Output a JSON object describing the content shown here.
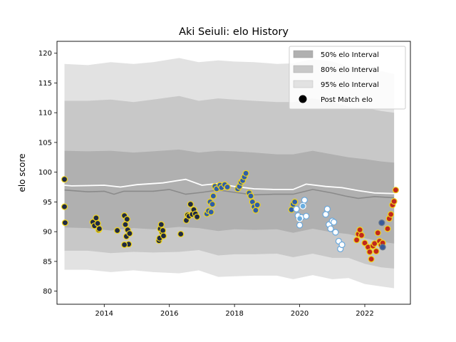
{
  "chart_data": {
    "type": "scatter",
    "title": "Aki Seiuli: elo History",
    "xlabel": "",
    "ylabel": "elo score",
    "xlim": [
      2012.55,
      2023.4
    ],
    "ylim": [
      77.8,
      122.0
    ],
    "xticks": [
      2014,
      2016,
      2018,
      2020,
      2022
    ],
    "xtick_labels": [
      "2014",
      "2016",
      "2018",
      "2020",
      "2022"
    ],
    "yticks": [
      80,
      85,
      90,
      95,
      100,
      105,
      110,
      115,
      120
    ],
    "ytick_labels": [
      "80",
      "85",
      "90",
      "95",
      "100",
      "105",
      "110",
      "115",
      "120"
    ],
    "legend_position": "top-right",
    "legend": [
      {
        "label": "50% elo Interval",
        "kind": "band",
        "color": "#b0b0b0"
      },
      {
        "label": "80% elo Interval",
        "kind": "band",
        "color": "#c8c8c8"
      },
      {
        "label": "95% elo Interval",
        "kind": "band",
        "color": "#e2e2e2"
      },
      {
        "label": "Post Match elo",
        "kind": "marker",
        "color": "#000000"
      }
    ],
    "bands": [
      {
        "name": "95% elo Interval",
        "color": "#e2e2e2",
        "x": [
          2012.78,
          2013.5,
          2014.2,
          2014.9,
          2015.5,
          2016.3,
          2016.9,
          2017.5,
          2018.0,
          2018.6,
          2019.3,
          2019.8,
          2020.4,
          2021.0,
          2021.5,
          2022.0,
          2022.5,
          2022.9
        ],
        "upper": [
          118.2,
          118.0,
          118.5,
          118.2,
          118.5,
          119.2,
          118.5,
          118.8,
          118.6,
          118.5,
          118.2,
          118.3,
          119.0,
          118.6,
          117.8,
          117.6,
          117.0,
          116.5
        ],
        "lower": [
          83.6,
          83.6,
          83.2,
          83.5,
          83.2,
          83.0,
          83.5,
          82.4,
          82.5,
          82.6,
          82.6,
          82.0,
          82.7,
          82.0,
          82.2,
          81.2,
          80.8,
          80.5
        ]
      },
      {
        "name": "80% elo Interval",
        "color": "#c8c8c8",
        "x": [
          2012.78,
          2013.5,
          2014.2,
          2014.9,
          2015.5,
          2016.3,
          2016.9,
          2017.5,
          2018.0,
          2018.6,
          2019.3,
          2019.8,
          2020.4,
          2021.0,
          2021.5,
          2022.0,
          2022.5,
          2022.9
        ],
        "upper": [
          112.0,
          112.0,
          112.2,
          111.8,
          112.2,
          112.8,
          112.0,
          112.4,
          112.2,
          112.0,
          111.8,
          111.8,
          112.4,
          111.8,
          111.0,
          110.8,
          110.3,
          110.0
        ],
        "lower": [
          86.8,
          86.8,
          86.4,
          86.6,
          86.5,
          86.6,
          86.9,
          86.0,
          86.2,
          86.2,
          86.3,
          85.7,
          86.3,
          85.6,
          85.6,
          84.6,
          84.0,
          83.8
        ]
      },
      {
        "name": "50% elo Interval",
        "color": "#b0b0b0",
        "x": [
          2012.78,
          2013.5,
          2014.2,
          2014.9,
          2015.5,
          2016.3,
          2016.9,
          2017.5,
          2018.0,
          2018.6,
          2019.3,
          2019.8,
          2020.4,
          2021.0,
          2021.5,
          2022.0,
          2022.5,
          2022.9
        ],
        "upper": [
          103.6,
          103.5,
          103.6,
          103.3,
          103.5,
          103.8,
          103.3,
          103.6,
          103.5,
          103.3,
          103.0,
          103.0,
          103.6,
          103.0,
          102.5,
          102.2,
          101.8,
          101.6
        ],
        "lower": [
          90.7,
          90.6,
          90.2,
          90.6,
          90.4,
          90.8,
          90.6,
          90.1,
          90.4,
          90.3,
          90.4,
          89.8,
          90.5,
          89.9,
          89.6,
          88.9,
          88.3,
          88.0
        ]
      }
    ],
    "lines": [
      {
        "name": "mean",
        "color": "#ffffff",
        "x": [
          2012.78,
          2013.0,
          2014.0,
          2014.5,
          2015.0,
          2015.8,
          2016.5,
          2017.0,
          2017.5,
          2018.0,
          2018.6,
          2019.2,
          2019.8,
          2020.2,
          2020.8,
          2021.3,
          2021.8,
          2022.3,
          2022.9
        ],
        "y": [
          97.8,
          97.7,
          97.8,
          97.5,
          97.9,
          98.2,
          98.8,
          97.8,
          98.1,
          97.6,
          97.2,
          97.1,
          97.1,
          98.0,
          97.6,
          97.4,
          96.9,
          96.5,
          96.4
        ]
      },
      {
        "name": "median",
        "color": "#8a8a8a",
        "x": [
          2012.78,
          2013.5,
          2014.0,
          2014.3,
          2014.6,
          2015.5,
          2016.0,
          2016.5,
          2017.0,
          2017.5,
          2018.0,
          2018.6,
          2019.2,
          2019.8,
          2020.4,
          2021.0,
          2021.4,
          2021.8,
          2022.3,
          2022.9
        ],
        "y": [
          97.0,
          96.7,
          96.8,
          96.3,
          96.8,
          96.8,
          97.1,
          96.3,
          96.6,
          97.0,
          96.6,
          96.2,
          96.3,
          96.3,
          97.1,
          96.5,
          96.0,
          95.6,
          95.9,
          95.7
        ]
      }
    ],
    "series": [
      {
        "name": "",
        "color": "#1f2a44",
        "edge": "#f2d51a",
        "x": [
          2012.78,
          2012.78,
          2012.8,
          2013.65,
          2013.7,
          2013.75,
          2013.8,
          2013.83,
          2013.85,
          2014.4,
          2014.62,
          2014.65,
          2014.68,
          2014.7,
          2014.72,
          2014.75,
          2014.78,
          2014.62,
          2015.68,
          2015.7,
          2015.72,
          2015.75,
          2015.78,
          2015.8,
          2015.82,
          2016.35,
          2016.52,
          2016.56,
          2016.6,
          2016.65,
          2016.7,
          2016.75,
          2016.8,
          2016.85
        ],
        "y": [
          98.8,
          94.2,
          91.5,
          91.6,
          91.0,
          92.3,
          91.4,
          90.3,
          90.5,
          90.2,
          92.7,
          91.2,
          89.2,
          92.1,
          90.3,
          87.9,
          89.7,
          87.8,
          88.5,
          88.9,
          90.5,
          91.2,
          89.9,
          90.2,
          89.3,
          89.6,
          91.9,
          92.8,
          92.6,
          94.6,
          92.9,
          93.7,
          93.0,
          92.5
        ]
      },
      {
        "name": "",
        "color": "#2f5ea8",
        "edge": "#f2d51a",
        "x": [
          2017.15,
          2017.2,
          2017.25,
          2017.28,
          2017.32,
          2017.35,
          2017.4,
          2017.45,
          2017.55,
          2017.6,
          2017.7,
          2017.78,
          2018.1,
          2018.15,
          2018.2,
          2018.25,
          2018.3,
          2018.35,
          2018.45,
          2018.5,
          2018.55,
          2018.6,
          2018.65,
          2018.7,
          2019.75,
          2019.8,
          2019.85
        ],
        "y": [
          93.0,
          93.5,
          95.0,
          93.3,
          94.6,
          96.0,
          97.6,
          97.2,
          97.8,
          97.4,
          97.9,
          97.5,
          97.2,
          97.6,
          98.3,
          98.6,
          99.2,
          99.8,
          96.5,
          96.0,
          95.0,
          94.2,
          93.6,
          94.5,
          93.7,
          94.6,
          95.0
        ]
      },
      {
        "name": "",
        "color": "#ffffff",
        "edge": "#6aa8dc",
        "x": [
          2019.9,
          2019.95,
          2020.0,
          2020.05,
          2020.1,
          2020.15,
          2020.2,
          2020.8,
          2020.85,
          2020.9,
          2020.95,
          2021.0,
          2021.05,
          2021.1,
          2021.2,
          2021.25,
          2021.3
        ],
        "y": [
          93.8,
          92.7,
          91.1,
          92.4,
          94.4,
          95.3,
          92.6,
          92.9,
          93.8,
          91.2,
          90.5,
          91.8,
          91.6,
          89.9,
          88.4,
          87.1,
          87.8
        ]
      },
      {
        "name": "",
        "color": "#6aaee0",
        "edge": "#ffffff",
        "x": [
          2020.0,
          2020.1
        ],
        "y": [
          92.2,
          94.3
        ]
      },
      {
        "name": "",
        "color": "#c0281e",
        "edge": "#f2d51a",
        "x": [
          2021.75,
          2021.8,
          2021.85,
          2021.9,
          2022.0,
          2022.1,
          2022.15,
          2022.2,
          2022.25,
          2022.3,
          2022.35,
          2022.4,
          2022.45,
          2022.5,
          2022.55,
          2022.7,
          2022.75,
          2022.8,
          2022.85,
          2022.9,
          2022.95
        ],
        "y": [
          88.6,
          89.6,
          90.3,
          89.4,
          88.1,
          87.4,
          86.6,
          85.4,
          87.6,
          88.0,
          86.7,
          89.8,
          88.4,
          87.8,
          88.1,
          90.5,
          92.2,
          92.9,
          94.5,
          95.1,
          97.0
        ]
      },
      {
        "name": "",
        "color": "#3a5a9a",
        "edge": "#6b7b8b",
        "x": [
          2022.52,
          2022.55
        ],
        "y": [
          91.5,
          87.4
        ]
      }
    ]
  }
}
